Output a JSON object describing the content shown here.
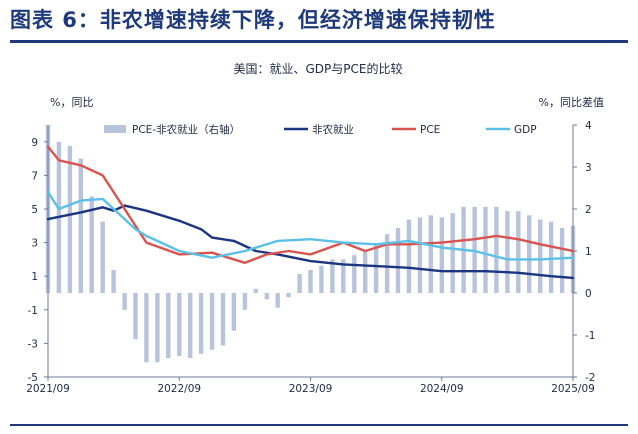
{
  "figure": {
    "title": "图表 6：非农增速持续下降，但经济增速保持韧性"
  },
  "chart_data": {
    "type": "line",
    "title": "美国：就业、GDP与PCE的比较",
    "left_axis_label": "%，同比",
    "right_axis_label": "%，同比差值",
    "left_ylim": [
      -5,
      10
    ],
    "left_ticks": [
      9,
      7,
      5,
      3,
      1,
      -1,
      -3,
      -5
    ],
    "right_ylim": [
      -2,
      4
    ],
    "right_ticks": [
      4,
      3,
      2,
      1,
      0,
      -1,
      -2
    ],
    "x_tick_labels": [
      "2021/09",
      "2022/09",
      "2023/09",
      "2024/09",
      "2025/09"
    ],
    "x_months": [
      "2021/09",
      "2021/10",
      "2021/11",
      "2021/12",
      "2022/01",
      "2022/02",
      "2022/03",
      "2022/04",
      "2022/05",
      "2022/06",
      "2022/07",
      "2022/08",
      "2022/09",
      "2022/10",
      "2022/11",
      "2022/12",
      "2023/01",
      "2023/02",
      "2023/03",
      "2023/04",
      "2023/05",
      "2023/06",
      "2023/07",
      "2023/08",
      "2023/09",
      "2023/10",
      "2023/11",
      "2023/12",
      "2024/01",
      "2024/02",
      "2024/03",
      "2024/04",
      "2024/05",
      "2024/06",
      "2024/07",
      "2024/08",
      "2024/09",
      "2024/10",
      "2024/11",
      "2024/12",
      "2025/01",
      "2025/02",
      "2025/03",
      "2025/04",
      "2025/05",
      "2025/06",
      "2025/07",
      "2025/08",
      "2025/09"
    ],
    "legend_position": "top",
    "grid": false,
    "series": [
      {
        "name": "PCE-非农就业（右轴）",
        "type": "bar",
        "axis": "right",
        "color": "#b7c4dc",
        "x": [
          "2021/09",
          "2021/10",
          "2021/11",
          "2021/12",
          "2022/01",
          "2022/02",
          "2022/03",
          "2022/04",
          "2022/05",
          "2022/06",
          "2022/07",
          "2022/08",
          "2022/09",
          "2022/10",
          "2022/11",
          "2022/12",
          "2023/01",
          "2023/02",
          "2023/03",
          "2023/04",
          "2023/05",
          "2023/06",
          "2023/07",
          "2023/08",
          "2023/09",
          "2023/10",
          "2023/11",
          "2023/12",
          "2024/01",
          "2024/02",
          "2024/03",
          "2024/04",
          "2024/05",
          "2024/06",
          "2024/07",
          "2024/08",
          "2024/09",
          "2024/10",
          "2024/11",
          "2024/12",
          "2025/01",
          "2025/02",
          "2025/03",
          "2025/04",
          "2025/05",
          "2025/06",
          "2025/07",
          "2025/08",
          "2025/09"
        ],
        "values": [
          4.0,
          3.6,
          3.5,
          3.2,
          2.3,
          1.7,
          0.55,
          -0.4,
          -1.1,
          -1.65,
          -1.65,
          -1.55,
          -1.5,
          -1.55,
          -1.45,
          -1.35,
          -1.25,
          -0.9,
          -0.4,
          0.1,
          -0.15,
          -0.35,
          -0.1,
          0.45,
          0.55,
          0.65,
          0.8,
          0.8,
          0.9,
          1.0,
          1.15,
          1.4,
          1.55,
          1.75,
          1.8,
          1.85,
          1.8,
          1.9,
          2.05,
          2.05,
          2.05,
          2.05,
          1.95,
          1.95,
          1.85,
          1.75,
          1.7,
          1.55,
          1.6
        ]
      },
      {
        "name": "非农就业",
        "type": "line",
        "axis": "left",
        "color": "#1b3580",
        "x": [
          "2021/09",
          "2021/12",
          "2022/02",
          "2022/03",
          "2022/04",
          "2022/06",
          "2022/09",
          "2022/11",
          "2022/12",
          "2023/02",
          "2023/04",
          "2023/06",
          "2023/09",
          "2023/12",
          "2024/03",
          "2024/06",
          "2024/09",
          "2025/01",
          "2025/04",
          "2025/07",
          "2025/09"
        ],
        "values": [
          4.4,
          4.8,
          5.1,
          4.9,
          5.2,
          4.9,
          4.3,
          3.8,
          3.3,
          3.1,
          2.5,
          2.3,
          1.9,
          1.7,
          1.6,
          1.5,
          1.3,
          1.3,
          1.2,
          1.0,
          0.9
        ]
      },
      {
        "name": "PCE",
        "type": "line",
        "axis": "left",
        "color": "#d9534f",
        "x": [
          "2021/09",
          "2021/10",
          "2021/12",
          "2022/02",
          "2022/04",
          "2022/06",
          "2022/09",
          "2022/12",
          "2023/03",
          "2023/05",
          "2023/07",
          "2023/09",
          "2023/12",
          "2024/02",
          "2024/04",
          "2024/06",
          "2024/09",
          "2024/12",
          "2025/02",
          "2025/04",
          "2025/06",
          "2025/09"
        ],
        "values": [
          8.7,
          7.9,
          7.6,
          7.0,
          5.0,
          3.0,
          2.3,
          2.4,
          1.8,
          2.3,
          2.5,
          2.3,
          3.0,
          2.5,
          2.9,
          2.9,
          3.0,
          3.2,
          3.4,
          3.2,
          2.9,
          2.5
        ]
      },
      {
        "name": "GDP",
        "type": "line",
        "axis": "left",
        "color": "#5bc0e6",
        "x": [
          "2021/09",
          "2021/10",
          "2021/12",
          "2022/02",
          "2022/05",
          "2022/06",
          "2022/09",
          "2022/12",
          "2023/03",
          "2023/06",
          "2023/09",
          "2023/12",
          "2024/03",
          "2024/06",
          "2024/09",
          "2024/12",
          "2025/03",
          "2025/06",
          "2025/09"
        ],
        "values": [
          6.0,
          5.0,
          5.5,
          5.6,
          3.8,
          3.4,
          2.5,
          2.1,
          2.5,
          3.1,
          3.2,
          3.0,
          2.9,
          3.1,
          2.7,
          2.5,
          2.0,
          2.0,
          2.1
        ]
      }
    ]
  }
}
